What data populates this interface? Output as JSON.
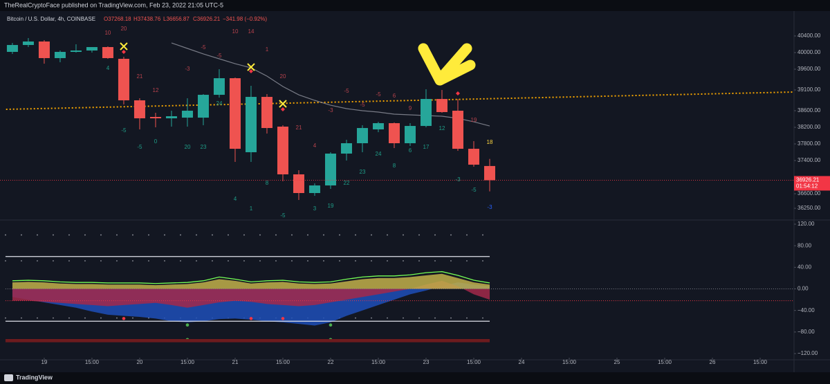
{
  "header": {
    "publisher": "TheRealCryptoFace published on TradingView.com, Feb 23, 2022 21:05 UTC-5",
    "logo": "TradingView"
  },
  "chart_data": [
    {
      "type": "candlestick",
      "quote": {
        "symbol": "Bitcoin / U.S. Dollar, 4h, COINBASE",
        "open": "O37268.18",
        "high": "H37438.76",
        "low": "L36656.87",
        "close": "C36926.21",
        "change": "−341.98 (−0.92%)"
      },
      "x": [
        0,
        1,
        2,
        3,
        4,
        5,
        6,
        7,
        8,
        9,
        10,
        11,
        12,
        13,
        14,
        15,
        16,
        17,
        18,
        19,
        20,
        21,
        22,
        23,
        24,
        25,
        26,
        27,
        28,
        29,
        30
      ],
      "open": [
        40017,
        40183,
        40267,
        39867,
        40017,
        40050,
        40133,
        39850,
        38850,
        38450,
        38417,
        38433,
        38433,
        38983,
        39383,
        37600,
        38933,
        38217,
        37067,
        36617,
        36800,
        37567,
        37817,
        38150,
        38300,
        37817,
        38233,
        38883,
        38600,
        37683,
        37268.18
      ],
      "high": [
        40233,
        40350,
        40300,
        40050,
        40200,
        40133,
        40150,
        39900,
        38900,
        38550,
        38600,
        38900,
        39000,
        39600,
        39400,
        39200,
        39000,
        38250,
        37167,
        36850,
        37600,
        37900,
        38250,
        38333,
        38317,
        38300,
        39117,
        39100,
        38883,
        37867,
        37438.76
      ],
      "low": [
        39967,
        40133,
        39733,
        39767,
        40000,
        40000,
        39850,
        38750,
        38150,
        38200,
        38217,
        38217,
        38250,
        38917,
        37367,
        37367,
        38050,
        36900,
        36450,
        36550,
        36717,
        37400,
        37600,
        38083,
        37700,
        37750,
        38200,
        38550,
        37633,
        37250,
        36656.87
      ],
      "close": [
        40183,
        40267,
        39867,
        40017,
        40050,
        40133,
        39867,
        38850,
        38417,
        38417,
        38467,
        38600,
        38983,
        39383,
        37683,
        38933,
        38183,
        37067,
        36617,
        36800,
        37567,
        37817,
        38183,
        38300,
        37817,
        38233,
        38883,
        38567,
        37683,
        37300,
        36926.21
      ],
      "up_color": "#26a69a",
      "down_color": "#ef5350",
      "xlim": [
        -0.78,
        49.13
      ],
      "ylim": [
        35967,
        41000
      ],
      "xticks": [
        {
          "value": 2,
          "label": "19"
        },
        {
          "value": 5,
          "label": "15:00"
        },
        {
          "value": 8,
          "label": "20"
        },
        {
          "value": 11,
          "label": "15:00"
        },
        {
          "value": 14,
          "label": "21"
        },
        {
          "value": 17,
          "label": "15:00"
        },
        {
          "value": 20,
          "label": "22"
        },
        {
          "value": 23,
          "label": "15:00"
        },
        {
          "value": 26,
          "label": "23"
        },
        {
          "value": 29,
          "label": "15:00"
        },
        {
          "value": 32,
          "label": "24"
        },
        {
          "value": 35,
          "label": "15:00"
        },
        {
          "value": 38,
          "label": "25"
        },
        {
          "value": 41,
          "label": "15:00"
        },
        {
          "value": 44,
          "label": "26"
        },
        {
          "value": 47,
          "label": "15:00"
        }
      ],
      "yticks": [
        {
          "value": 40400,
          "label": "40400.00"
        },
        {
          "value": 40000,
          "label": "40000.00"
        },
        {
          "value": 39600,
          "label": "39600.00"
        },
        {
          "value": 39100,
          "label": "39100.00"
        },
        {
          "value": 38600,
          "label": "38600.00"
        },
        {
          "value": 38200,
          "label": "38200.00"
        },
        {
          "value": 37800,
          "label": "37800.00"
        },
        {
          "value": 37400,
          "label": "37400.00"
        },
        {
          "value": 36600,
          "label": "36600.00"
        },
        {
          "value": 36250,
          "label": "36250.00"
        }
      ],
      "grid": false,
      "price_tag": {
        "color": "#f23645",
        "countdown": "01:54:12"
      },
      "ma": {
        "color": "#787b86",
        "values": [
          null,
          null,
          null,
          null,
          null,
          null,
          null,
          null,
          null,
          null,
          40233,
          40100,
          39967,
          39850,
          39733,
          39633,
          39433,
          39183,
          38983,
          38850,
          38733,
          38650,
          38600,
          38567,
          38517,
          38500,
          38483,
          38467,
          38417,
          38333,
          38233
        ]
      },
      "trendline": {
        "color": "#f7a600",
        "x": [
          -0.4,
          49.1
        ],
        "values": [
          38633,
          39050
        ]
      },
      "x_markers": {
        "color": "#ffeb3b",
        "x": [
          7,
          15,
          17
        ],
        "y": [
          40150,
          39650,
          38767
        ]
      },
      "diamonds": {
        "color": "#f23645",
        "x": [
          7,
          15,
          17,
          27,
          28
        ],
        "y": [
          40017,
          39550,
          38633,
          39267,
          39017
        ]
      },
      "annotations": [
        {
          "color": "#b8434d",
          "items": [
            {
              "text": "10",
              "x": 6,
              "y": 40467
            },
            {
              "text": "20",
              "x": 7,
              "y": 40567
            },
            {
              "text": "21",
              "x": 8,
              "y": 39417
            },
            {
              "text": "12",
              "x": 9,
              "y": 39083
            },
            {
              "text": "-3",
              "x": 11,
              "y": 39600
            },
            {
              "text": "-5",
              "x": 12,
              "y": 40117
            },
            {
              "text": "-5",
              "x": 13,
              "y": 39917
            },
            {
              "text": "10",
              "x": 14,
              "y": 40500
            },
            {
              "text": "14",
              "x": 15,
              "y": 40500
            },
            {
              "text": "1",
              "x": 16,
              "y": 40067
            },
            {
              "text": "20",
              "x": 17,
              "y": 39417
            },
            {
              "text": "21",
              "x": 18,
              "y": 38183
            },
            {
              "text": "4",
              "x": 19,
              "y": 37750
            },
            {
              "text": "-3",
              "x": 20,
              "y": 38600
            },
            {
              "text": "-5",
              "x": 21,
              "y": 39067
            },
            {
              "text": "-5",
              "x": 22,
              "y": 38733
            },
            {
              "text": "-5",
              "x": 23,
              "y": 38983
            },
            {
              "text": "6",
              "x": 24,
              "y": 38950
            },
            {
              "text": "9",
              "x": 25,
              "y": 38650
            },
            {
              "text": "19",
              "x": 29,
              "y": 38367
            }
          ]
        },
        {
          "color": "#1f9e88",
          "items": [
            {
              "text": "4",
              "x": 6,
              "y": 39617
            },
            {
              "text": "-5",
              "x": 7,
              "y": 38117
            },
            {
              "text": "-5",
              "x": 8,
              "y": 37717
            },
            {
              "text": "0",
              "x": 9,
              "y": 37850
            },
            {
              "text": "20",
              "x": 11,
              "y": 37717
            },
            {
              "text": "23",
              "x": 12,
              "y": 37717
            },
            {
              "text": "24",
              "x": 13,
              "y": 38767
            },
            {
              "text": "4",
              "x": 14,
              "y": 36467
            },
            {
              "text": "1",
              "x": 15,
              "y": 36233
            },
            {
              "text": "8",
              "x": 16,
              "y": 36850
            },
            {
              "text": "-5",
              "x": 17,
              "y": 36067
            },
            {
              "text": "3",
              "x": 19,
              "y": 36233
            },
            {
              "text": "19",
              "x": 20,
              "y": 36300
            },
            {
              "text": "22",
              "x": 21,
              "y": 36850
            },
            {
              "text": "23",
              "x": 22,
              "y": 37117
            },
            {
              "text": "24",
              "x": 23,
              "y": 37550
            },
            {
              "text": "8",
              "x": 24,
              "y": 37267
            },
            {
              "text": "6",
              "x": 25,
              "y": 37633
            },
            {
              "text": "17",
              "x": 26,
              "y": 37717
            },
            {
              "text": "12",
              "x": 27,
              "y": 38167
            },
            {
              "text": "-3",
              "x": 28,
              "y": 36933
            },
            {
              "text": "-5",
              "x": 29,
              "y": 36683
            }
          ]
        },
        {
          "color": "#ffd740",
          "items": [
            {
              "text": "18",
              "x": 30,
              "y": 37833
            }
          ]
        },
        {
          "color": "#2962ff",
          "items": [
            {
              "text": "-3",
              "x": 30,
              "y": 36267
            }
          ]
        }
      ]
    },
    {
      "type": "area",
      "x": [
        0,
        1,
        2,
        3,
        4,
        5,
        6,
        7,
        8,
        9,
        10,
        11,
        12,
        13,
        14,
        15,
        16,
        17,
        18,
        19,
        20,
        21,
        22,
        23,
        24,
        25,
        26,
        27,
        28,
        29,
        30
      ],
      "xlim": [
        -0.78,
        49.13
      ],
      "ylim": [
        -131.5,
        127.7
      ],
      "yticks": [
        {
          "value": 120,
          "label": "120.00"
        },
        {
          "value": 80,
          "label": "80.00"
        },
        {
          "value": 40,
          "label": "40.00"
        },
        {
          "value": 0,
          "label": "0.00"
        },
        {
          "value": -40,
          "label": "−40.00"
        },
        {
          "value": -80,
          "label": "−80.00"
        },
        {
          "value": -120,
          "label": "−120.00"
        }
      ],
      "series": [
        {
          "kind": "area",
          "color": "#1e4fb8",
          "values": [
            -15,
            -20,
            -25,
            -30,
            -35,
            -42,
            -48,
            -50,
            -52,
            -55,
            -60,
            -62,
            -60,
            -56,
            -55,
            -57,
            -60,
            -62,
            -65,
            -68,
            -62,
            -50,
            -40,
            -30,
            -20,
            -10,
            -3,
            5,
            12,
            8,
            5
          ]
        },
        {
          "kind": "area",
          "color": "#a3294a",
          "values": [
            -22,
            -22,
            -24,
            -26,
            -28,
            -30,
            -32,
            -30,
            -28,
            -26,
            -30,
            -35,
            -30,
            -25,
            -22,
            -24,
            -28,
            -30,
            -32,
            -30,
            -25,
            -20,
            -15,
            -10,
            -5,
            0,
            8,
            15,
            5,
            -10,
            -20
          ]
        },
        {
          "kind": "area",
          "color": "#c2b04a",
          "values": [
            12,
            13,
            12,
            10,
            9,
            9,
            8,
            8,
            8,
            7,
            8,
            9,
            12,
            18,
            15,
            10,
            12,
            13,
            10,
            9,
            10,
            14,
            18,
            20,
            20,
            22,
            25,
            28,
            20,
            12,
            8
          ]
        },
        {
          "kind": "line",
          "color": "#76ff56",
          "values": [
            15,
            16,
            15,
            13,
            12,
            12,
            11,
            11,
            11,
            10,
            11,
            12,
            15,
            22,
            18,
            13,
            15,
            16,
            13,
            12,
            13,
            18,
            22,
            24,
            24,
            26,
            30,
            32,
            25,
            16,
            11
          ]
        }
      ],
      "hlines": {
        "color": "#e0e3eb",
        "values": [
          60,
          -60
        ]
      },
      "zero_line": {
        "color": "#787b86",
        "value": 0
      },
      "signal_line": {
        "color": "#f23645",
        "value": -22
      },
      "dot_levels": {
        "color": "#9598a1",
        "values": [
          100,
          52,
          -54
        ]
      },
      "signal_dots": [
        {
          "color": "#4caf50",
          "x": [
            11,
            20,
            11,
            20
          ],
          "y": [
            -67,
            -67,
            -94,
            -94
          ]
        },
        {
          "color": "#f23645",
          "x": [
            7,
            15,
            17
          ],
          "y": [
            -55,
            -55,
            -55
          ]
        }
      ],
      "band": {
        "color": "#6d1b1e",
        "values": [
          -93,
          -99
        ]
      }
    }
  ]
}
